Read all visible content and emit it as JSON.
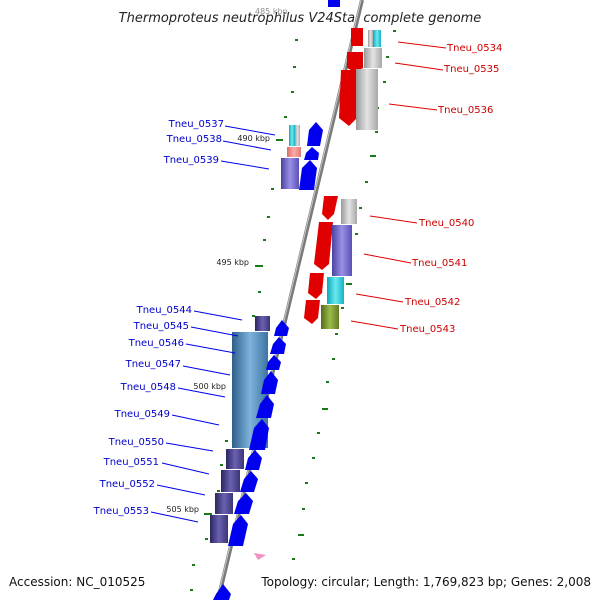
{
  "title": "Thermoproteus neutrophilus V24Sta, complete genome",
  "accession": "Accession: NC_010525",
  "topology": "Topology: circular; Length: 1,769,823 bp; Genes: 2,008",
  "scale_labels": [
    "490 kbp",
    "495 kbp",
    "500 kbp",
    "505 kbp"
  ],
  "right_genes": [
    "Tneu_0534",
    "Tneu_0535",
    "Tneu_0536",
    "Tneu_0540",
    "Tneu_0541",
    "Tneu_0542",
    "Tneu_0543"
  ],
  "left_genes": [
    "Tneu_0537",
    "Tneu_0538",
    "Tneu_0539",
    "Tneu_0544",
    "Tneu_0545",
    "Tneu_0546",
    "Tneu_0547",
    "Tneu_0548",
    "Tneu_0549",
    "Tneu_0550",
    "Tneu_0551",
    "Tneu_0552",
    "Tneu_0553"
  ],
  "colors": {
    "forward_strand": "#e00000",
    "reverse_strand": "#0000ee",
    "tick": "#1a7a1a",
    "backbone": "#888888"
  }
}
